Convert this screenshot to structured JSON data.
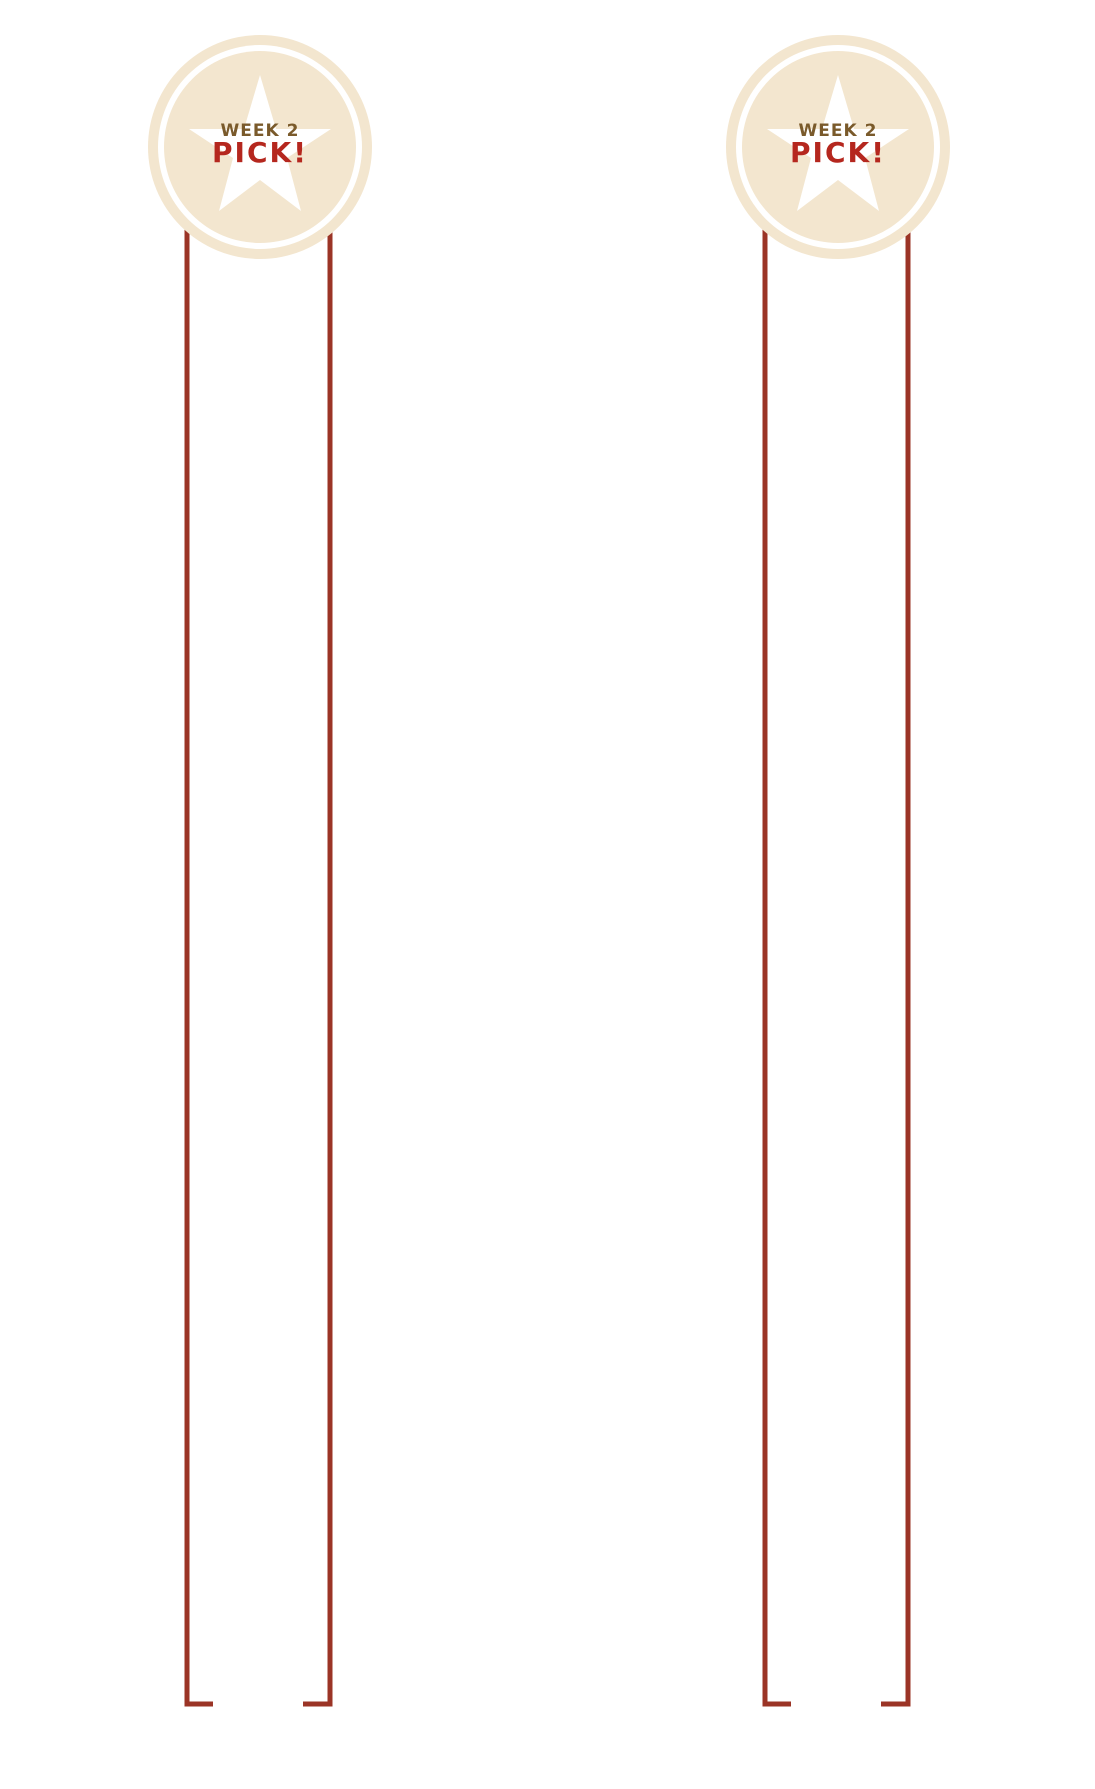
{
  "colors": {
    "bracket": "#9b3426",
    "badge_fill": "#f3e6cf",
    "week_text": "#7a5a2b",
    "pick_text": "#b5271e"
  },
  "columns": [
    {
      "badge": {
        "week_label": "WEEK 2",
        "pick_label": "PICK!",
        "icon": "star-icon"
      }
    },
    {
      "badge": {
        "week_label": "WEEK 2",
        "pick_label": "PICK!",
        "icon": "star-icon"
      }
    }
  ]
}
